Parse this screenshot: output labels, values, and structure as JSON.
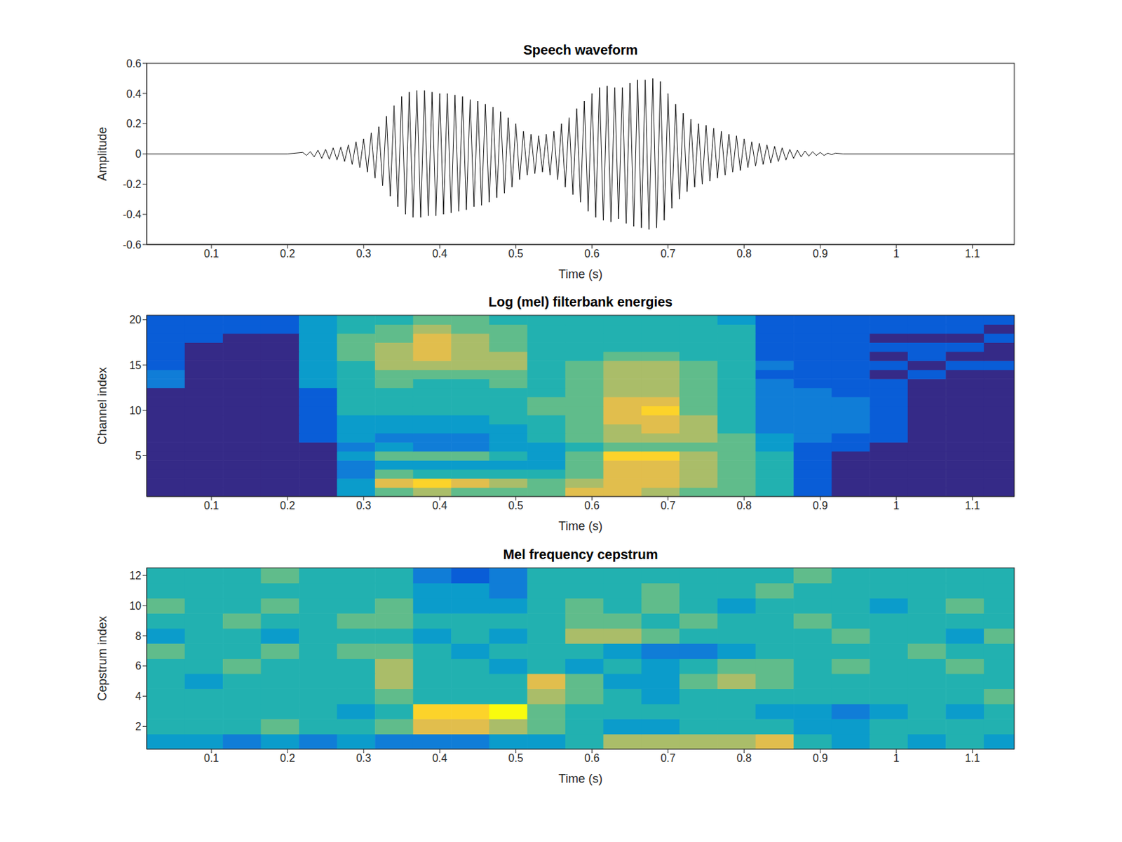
{
  "chart_data": [
    {
      "type": "line",
      "title": "Speech waveform",
      "x_label": "Time (s)",
      "y_label": "Amplitude",
      "color": "#000000",
      "xlim": [
        0.015,
        1.155
      ],
      "xticks": [
        0.1,
        0.2,
        0.3,
        0.4,
        0.5,
        0.6,
        0.7,
        0.8,
        0.9,
        1,
        1.1
      ],
      "ylim": [
        -0.6,
        0.6
      ],
      "yticks": [
        -0.6,
        -0.4,
        -0.2,
        0,
        0.2,
        0.4,
        0.6
      ],
      "x": [
        0.015,
        0.2,
        0.22,
        0.225,
        0.23,
        0.235,
        0.24,
        0.245,
        0.25,
        0.255,
        0.26,
        0.265,
        0.27,
        0.275,
        0.28,
        0.285,
        0.29,
        0.295,
        0.3,
        0.305,
        0.31,
        0.315,
        0.32,
        0.325,
        0.33,
        0.335,
        0.34,
        0.345,
        0.35,
        0.355,
        0.36,
        0.365,
        0.37,
        0.375,
        0.38,
        0.385,
        0.39,
        0.395,
        0.4,
        0.405,
        0.41,
        0.415,
        0.42,
        0.425,
        0.43,
        0.435,
        0.44,
        0.445,
        0.45,
        0.455,
        0.46,
        0.465,
        0.47,
        0.475,
        0.48,
        0.485,
        0.49,
        0.495,
        0.5,
        0.505,
        0.51,
        0.515,
        0.52,
        0.525,
        0.53,
        0.535,
        0.54,
        0.545,
        0.55,
        0.555,
        0.56,
        0.565,
        0.57,
        0.575,
        0.58,
        0.585,
        0.59,
        0.595,
        0.6,
        0.605,
        0.61,
        0.615,
        0.62,
        0.625,
        0.63,
        0.635,
        0.64,
        0.645,
        0.65,
        0.655,
        0.66,
        0.665,
        0.67,
        0.675,
        0.68,
        0.685,
        0.69,
        0.695,
        0.7,
        0.705,
        0.71,
        0.715,
        0.72,
        0.725,
        0.73,
        0.735,
        0.74,
        0.745,
        0.75,
        0.755,
        0.76,
        0.765,
        0.77,
        0.775,
        0.78,
        0.785,
        0.79,
        0.795,
        0.8,
        0.805,
        0.81,
        0.815,
        0.82,
        0.825,
        0.83,
        0.835,
        0.84,
        0.845,
        0.85,
        0.855,
        0.86,
        0.865,
        0.87,
        0.875,
        0.88,
        0.885,
        0.89,
        0.895,
        0.9,
        0.905,
        0.91,
        0.915,
        0.92,
        0.93,
        1.155
      ],
      "values": [
        0,
        0,
        0.01,
        -0.01,
        0.015,
        -0.02,
        0.025,
        -0.03,
        0.03,
        -0.035,
        0.04,
        -0.04,
        0.045,
        -0.05,
        0.06,
        -0.07,
        0.08,
        -0.09,
        0.1,
        -0.12,
        0.14,
        -0.16,
        0.18,
        -0.21,
        0.25,
        -0.28,
        0.32,
        -0.35,
        0.38,
        -0.4,
        0.41,
        -0.42,
        0.42,
        -0.42,
        0.42,
        -0.41,
        0.41,
        -0.41,
        0.4,
        -0.4,
        0.4,
        -0.39,
        0.39,
        -0.38,
        0.38,
        -0.37,
        0.36,
        -0.35,
        0.35,
        -0.34,
        0.33,
        -0.32,
        0.31,
        -0.29,
        0.28,
        -0.26,
        0.24,
        -0.22,
        0.2,
        -0.17,
        0.15,
        -0.14,
        0.13,
        -0.13,
        0.12,
        -0.12,
        0.13,
        -0.14,
        0.15,
        -0.17,
        0.2,
        -0.22,
        0.24,
        -0.27,
        0.3,
        -0.32,
        0.35,
        -0.38,
        0.4,
        -0.42,
        0.44,
        -0.44,
        0.45,
        -0.45,
        0.44,
        -0.43,
        0.44,
        -0.46,
        0.47,
        -0.48,
        0.49,
        -0.49,
        0.49,
        -0.5,
        0.5,
        -0.49,
        0.48,
        -0.44,
        0.4,
        -0.36,
        0.33,
        -0.3,
        0.27,
        -0.25,
        0.23,
        -0.22,
        0.2,
        -0.2,
        0.19,
        -0.18,
        0.17,
        -0.16,
        0.15,
        -0.14,
        0.13,
        -0.12,
        0.12,
        -0.11,
        0.1,
        -0.09,
        0.08,
        -0.08,
        0.07,
        -0.07,
        0.06,
        -0.06,
        0.05,
        -0.05,
        0.04,
        -0.04,
        0.03,
        -0.03,
        0.025,
        -0.02,
        0.02,
        -0.015,
        0.015,
        -0.01,
        0.01,
        -0.01,
        0.005,
        -0.005,
        0.005,
        0,
        0
      ]
    },
    {
      "type": "heatmap",
      "title": "Log (mel) filterbank energies",
      "x_label": "Time (s)",
      "y_label": "Channel index",
      "xlim": [
        0.015,
        1.155
      ],
      "xticks": [
        0.1,
        0.2,
        0.3,
        0.4,
        0.5,
        0.6,
        0.7,
        0.8,
        0.9,
        1,
        1.1
      ],
      "ylim": [
        0.5,
        20.5
      ],
      "yticks": [
        5,
        10,
        15,
        20
      ],
      "zlim": [
        0,
        9
      ],
      "x": [
        0.015,
        0.065,
        0.115,
        0.165,
        0.215,
        0.265,
        0.315,
        0.365,
        0.415,
        0.465,
        0.515,
        0.565,
        0.615,
        0.665,
        0.715,
        0.765,
        0.815,
        0.865,
        0.915,
        0.965,
        1.015,
        1.065,
        1.115
      ],
      "y": [
        1,
        2,
        3,
        4,
        5,
        6,
        7,
        8,
        9,
        10,
        11,
        12,
        13,
        14,
        15,
        16,
        17,
        18,
        19,
        20
      ],
      "z": [
        [
          0,
          0,
          0,
          0,
          0,
          3,
          5,
          6,
          5,
          5,
          5,
          7,
          7,
          6,
          5,
          5,
          4,
          1,
          0,
          0,
          0,
          0,
          0
        ],
        [
          0,
          0,
          0,
          0,
          0,
          3,
          7,
          8,
          7,
          6,
          5,
          6,
          7,
          7,
          6,
          5,
          4,
          1,
          0,
          0,
          0,
          0,
          0
        ],
        [
          0,
          0,
          0,
          0,
          0,
          2,
          5,
          4,
          4,
          4,
          4,
          5,
          7,
          7,
          6,
          5,
          4,
          1,
          0,
          0,
          0,
          0,
          0
        ],
        [
          0,
          0,
          0,
          0,
          0,
          2,
          3,
          3,
          3,
          3,
          3,
          5,
          7,
          7,
          6,
          5,
          4,
          1,
          0,
          0,
          0,
          0,
          0
        ],
        [
          0,
          0,
          0,
          0,
          0,
          3,
          5,
          5,
          5,
          4,
          3,
          5,
          8,
          8,
          6,
          5,
          4,
          1,
          0,
          0,
          0,
          0,
          0
        ],
        [
          0,
          0,
          0,
          0,
          0,
          2,
          3,
          2,
          2,
          3,
          3,
          4,
          5,
          5,
          5,
          5,
          3,
          1,
          1,
          0,
          0,
          0,
          0
        ],
        [
          0,
          0,
          0,
          0,
          1,
          3,
          2,
          2,
          2,
          3,
          4,
          5,
          6,
          6,
          6,
          5,
          3,
          2,
          1,
          1,
          0,
          0,
          0
        ],
        [
          0,
          0,
          0,
          0,
          1,
          3,
          3,
          3,
          3,
          3,
          4,
          5,
          6,
          7,
          6,
          4,
          2,
          2,
          2,
          1,
          0,
          0,
          0
        ],
        [
          0,
          0,
          0,
          0,
          1,
          3,
          3,
          3,
          3,
          4,
          4,
          5,
          7,
          7,
          6,
          4,
          2,
          2,
          2,
          1,
          0,
          0,
          0
        ],
        [
          0,
          0,
          0,
          0,
          1,
          4,
          4,
          4,
          4,
          4,
          5,
          5,
          7,
          8,
          5,
          4,
          2,
          2,
          2,
          1,
          0,
          0,
          0
        ],
        [
          0,
          0,
          0,
          0,
          1,
          4,
          4,
          4,
          4,
          4,
          5,
          5,
          7,
          7,
          5,
          4,
          2,
          2,
          2,
          1,
          0,
          0,
          0
        ],
        [
          0,
          0,
          0,
          0,
          1,
          4,
          4,
          4,
          4,
          4,
          4,
          5,
          6,
          6,
          5,
          4,
          2,
          2,
          1,
          1,
          0,
          0,
          0
        ],
        [
          2,
          0,
          0,
          0,
          3,
          4,
          5,
          4,
          4,
          5,
          4,
          5,
          6,
          6,
          5,
          4,
          2,
          1,
          1,
          1,
          0,
          0,
          0
        ],
        [
          2,
          0,
          0,
          0,
          3,
          4,
          5,
          5,
          5,
          5,
          4,
          5,
          6,
          6,
          5,
          4,
          1,
          1,
          1,
          0,
          1,
          0,
          0
        ],
        [
          1,
          0,
          0,
          0,
          3,
          4,
          6,
          6,
          6,
          6,
          4,
          5,
          6,
          6,
          5,
          4,
          2,
          1,
          1,
          1,
          0,
          1,
          1
        ],
        [
          1,
          0,
          0,
          0,
          3,
          5,
          6,
          7,
          6,
          6,
          4,
          4,
          5,
          5,
          4,
          4,
          1,
          1,
          1,
          0,
          1,
          0,
          0
        ],
        [
          1,
          0,
          0,
          0,
          3,
          5,
          6,
          7,
          6,
          5,
          4,
          4,
          4,
          4,
          4,
          4,
          1,
          1,
          1,
          1,
          1,
          1,
          0
        ],
        [
          1,
          1,
          0,
          0,
          3,
          5,
          5,
          7,
          6,
          5,
          4,
          4,
          4,
          4,
          4,
          4,
          1,
          1,
          1,
          0,
          0,
          0,
          1
        ],
        [
          1,
          1,
          1,
          1,
          3,
          4,
          5,
          6,
          5,
          5,
          4,
          4,
          4,
          4,
          4,
          4,
          1,
          1,
          1,
          1,
          1,
          1,
          0
        ],
        [
          1,
          1,
          1,
          1,
          3,
          4,
          4,
          5,
          5,
          4,
          4,
          4,
          4,
          4,
          4,
          3,
          1,
          1,
          1,
          1,
          1,
          1,
          1
        ]
      ]
    },
    {
      "type": "heatmap",
      "title": "Mel frequency cepstrum",
      "x_label": "Time (s)",
      "y_label": "Cepstrum index",
      "xlim": [
        0.015,
        1.155
      ],
      "xticks": [
        0.1,
        0.2,
        0.3,
        0.4,
        0.5,
        0.6,
        0.7,
        0.8,
        0.9,
        1,
        1.1
      ],
      "ylim": [
        0.5,
        12.5
      ],
      "yticks": [
        2,
        4,
        6,
        8,
        10,
        12
      ],
      "zlim": [
        0,
        9
      ],
      "x": [
        0.015,
        0.065,
        0.115,
        0.165,
        0.215,
        0.265,
        0.315,
        0.365,
        0.415,
        0.465,
        0.515,
        0.565,
        0.615,
        0.665,
        0.715,
        0.765,
        0.815,
        0.865,
        0.915,
        0.965,
        1.015,
        1.065,
        1.115
      ],
      "y": [
        1,
        2,
        3,
        4,
        5,
        6,
        7,
        8,
        9,
        10,
        11,
        12
      ],
      "z": [
        [
          3,
          3,
          2,
          3,
          2,
          3,
          2,
          2,
          2,
          3,
          3,
          4,
          6,
          6,
          6,
          6,
          7,
          4,
          3,
          4,
          3,
          4,
          3
        ],
        [
          4,
          4,
          4,
          5,
          4,
          4,
          5,
          7,
          7,
          6,
          5,
          4,
          3,
          3,
          4,
          4,
          4,
          3,
          3,
          4,
          4,
          4,
          4
        ],
        [
          4,
          4,
          4,
          4,
          4,
          3,
          4,
          8,
          8,
          9,
          5,
          4,
          4,
          4,
          4,
          4,
          3,
          3,
          2,
          3,
          4,
          3,
          4
        ],
        [
          4,
          4,
          4,
          4,
          4,
          4,
          5,
          4,
          4,
          4,
          6,
          5,
          4,
          3,
          4,
          4,
          4,
          4,
          4,
          4,
          4,
          4,
          5
        ],
        [
          4,
          3,
          4,
          4,
          4,
          4,
          6,
          4,
          4,
          4,
          7,
          5,
          3,
          3,
          5,
          6,
          5,
          4,
          4,
          4,
          4,
          4,
          4
        ],
        [
          4,
          4,
          5,
          4,
          4,
          4,
          6,
          4,
          4,
          3,
          4,
          3,
          4,
          3,
          4,
          5,
          5,
          4,
          5,
          4,
          4,
          5,
          4
        ],
        [
          5,
          4,
          4,
          5,
          4,
          5,
          5,
          4,
          3,
          4,
          4,
          4,
          3,
          2,
          2,
          3,
          4,
          4,
          4,
          4,
          5,
          4,
          4
        ],
        [
          3,
          4,
          4,
          3,
          4,
          4,
          4,
          3,
          4,
          3,
          4,
          6,
          6,
          5,
          4,
          4,
          4,
          4,
          5,
          4,
          4,
          3,
          5
        ],
        [
          4,
          4,
          5,
          4,
          4,
          5,
          5,
          4,
          4,
          4,
          4,
          5,
          5,
          4,
          5,
          4,
          4,
          5,
          4,
          4,
          4,
          4,
          4
        ],
        [
          5,
          4,
          4,
          5,
          4,
          4,
          5,
          3,
          3,
          3,
          4,
          5,
          4,
          5,
          4,
          3,
          4,
          4,
          4,
          3,
          4,
          5,
          4
        ],
        [
          4,
          4,
          4,
          4,
          4,
          4,
          4,
          3,
          3,
          2,
          4,
          4,
          4,
          5,
          4,
          4,
          5,
          4,
          4,
          4,
          4,
          4,
          4
        ],
        [
          4,
          4,
          4,
          5,
          4,
          4,
          4,
          2,
          1,
          2,
          4,
          4,
          4,
          4,
          4,
          4,
          4,
          5,
          4,
          4,
          4,
          4,
          4
        ]
      ]
    }
  ]
}
